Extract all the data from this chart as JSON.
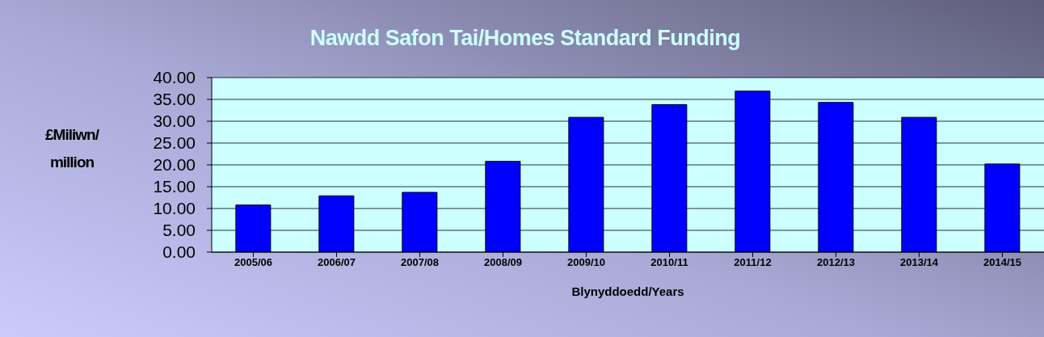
{
  "chart_data": {
    "type": "bar",
    "title": "Nawdd Safon Tai/Homes Standard Funding",
    "xlabel": "Blynyddoedd/Years",
    "ylabel": "£Miliwn/ million",
    "categories": [
      "2005/06",
      "2006/07",
      "2007/08",
      "2008/09",
      "2009/10",
      "2010/11",
      "2011/12",
      "2012/13",
      "2013/14",
      "2014/15"
    ],
    "values": [
      10.8,
      12.9,
      13.7,
      20.8,
      30.9,
      33.8,
      36.9,
      34.3,
      30.9,
      20.2
    ],
    "color": "#0000ff",
    "ylim": [
      0,
      40
    ],
    "yticks": [
      {
        "value": 0,
        "label": "0.00"
      },
      {
        "value": 5,
        "label": "5.00"
      },
      {
        "value": 10,
        "label": "10.00"
      },
      {
        "value": 15,
        "label": "15.00"
      },
      {
        "value": 20,
        "label": "20.00"
      },
      {
        "value": 25,
        "label": "25.00"
      },
      {
        "value": 30,
        "label": "30.00"
      },
      {
        "value": 35,
        "label": "35.00"
      },
      {
        "value": 40,
        "label": "40.00"
      }
    ],
    "grid": "y",
    "legend": false
  }
}
